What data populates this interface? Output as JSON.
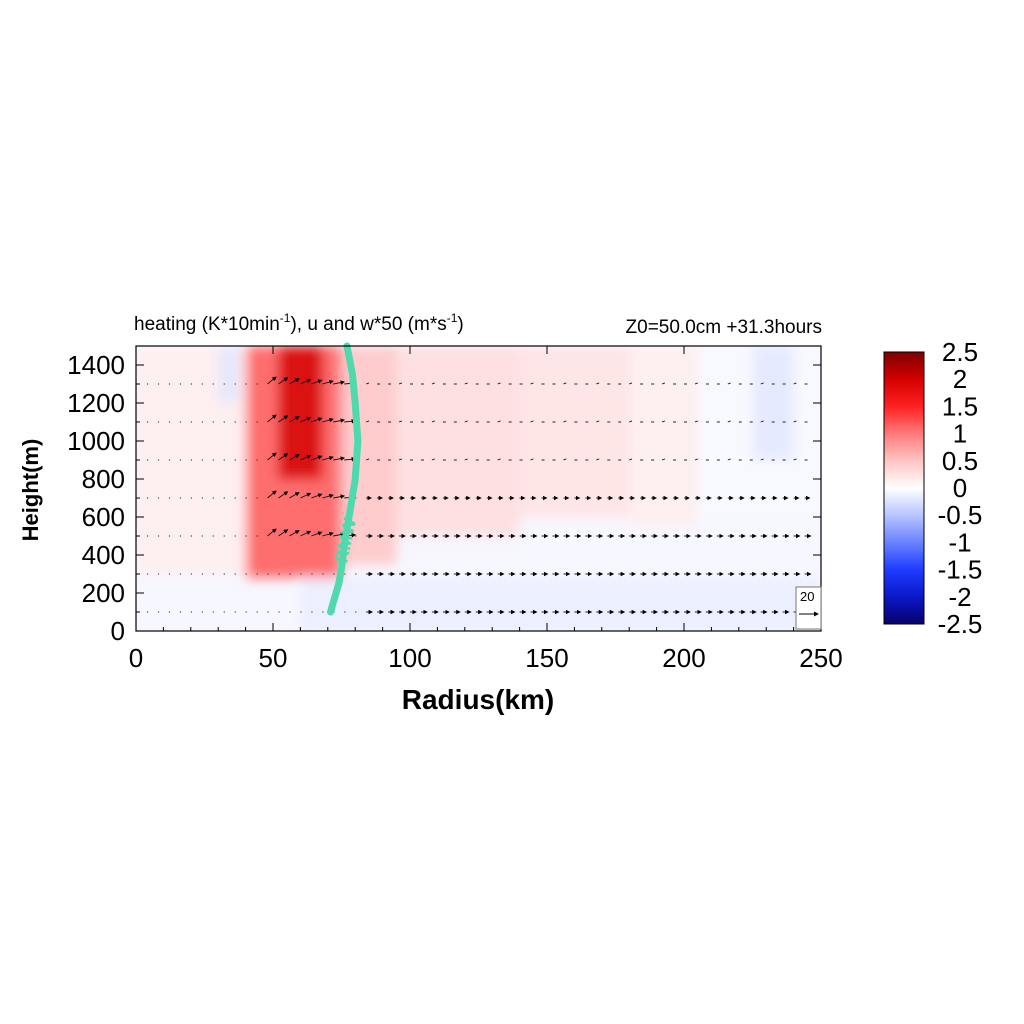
{
  "chart_data": {
    "type": "heatmap",
    "title_left": {
      "prefix": "heating (K*10min",
      "sup1": "-1",
      "middle": "), u and w*50 (m*s",
      "sup2": "-1",
      "suffix": ")"
    },
    "title_right": "Z0=50.0cm  +31.3hours",
    "xlabel": "Radius(km)",
    "ylabel": "Height(m)",
    "xlim": [
      0,
      250
    ],
    "ylim": [
      0,
      1500
    ],
    "xticks": [
      "0",
      "50",
      "100",
      "150",
      "200",
      "250"
    ],
    "yticks": [
      "0",
      "200",
      "400",
      "600",
      "800",
      "1000",
      "1200",
      "1400"
    ],
    "colorbar": {
      "range": [
        -2.5,
        2.5
      ],
      "labels": [
        "2.5",
        "2",
        "1.5",
        "1",
        "0.5",
        "0",
        "-0.5",
        "-1",
        "-1.5",
        "-2",
        "-2.5"
      ],
      "colors": [
        "#08006b",
        "#0a18c8",
        "#1f3cff",
        "#6a82ff",
        "#b8c4ff",
        "#ffffff",
        "#ffc4c4",
        "#ff7a7a",
        "#ff2020",
        "#d40000",
        "#7f0000"
      ]
    },
    "heating_columns": [
      {
        "r": [
          40,
          75
        ],
        "z": [
          280,
          1500
        ],
        "value": 1.2
      },
      {
        "r": [
          52,
          68
        ],
        "z": [
          800,
          1500
        ],
        "value": 2.0
      },
      {
        "r": [
          75,
          95
        ],
        "z": [
          350,
          1500
        ],
        "value": 0.5
      },
      {
        "r": [
          0,
          40
        ],
        "z": [
          300,
          1500
        ],
        "value": 0.15
      },
      {
        "r": [
          95,
          140
        ],
        "z": [
          500,
          1500
        ],
        "value": 0.3
      },
      {
        "r": [
          140,
          180
        ],
        "z": [
          600,
          1500
        ],
        "value": 0.25
      },
      {
        "r": [
          180,
          205
        ],
        "z": [
          550,
          1500
        ],
        "value": 0.15
      },
      {
        "r": [
          205,
          250
        ],
        "z": [
          600,
          1500
        ],
        "value": -0.05
      },
      {
        "r": [
          60,
          250
        ],
        "z": [
          0,
          280
        ],
        "value": -0.15
      },
      {
        "r": [
          225,
          240
        ],
        "z": [
          900,
          1500
        ],
        "value": -0.2
      },
      {
        "r": [
          30,
          38
        ],
        "z": [
          1200,
          1500
        ],
        "value": -0.2
      }
    ],
    "rmw_line": {
      "label": "RMW",
      "color": "#4fd9ad",
      "points": [
        [
          71,
          100
        ],
        [
          74,
          250
        ],
        [
          75,
          330
        ],
        [
          76,
          450
        ],
        [
          78,
          620
        ],
        [
          80,
          800
        ],
        [
          81,
          1000
        ],
        [
          80,
          1200
        ],
        [
          79,
          1350
        ],
        [
          77,
          1500
        ]
      ]
    },
    "wind_vectors": {
      "levels": [
        100,
        300,
        500,
        700,
        900,
        1100,
        1300
      ],
      "reference": {
        "label": "20"
      }
    }
  }
}
